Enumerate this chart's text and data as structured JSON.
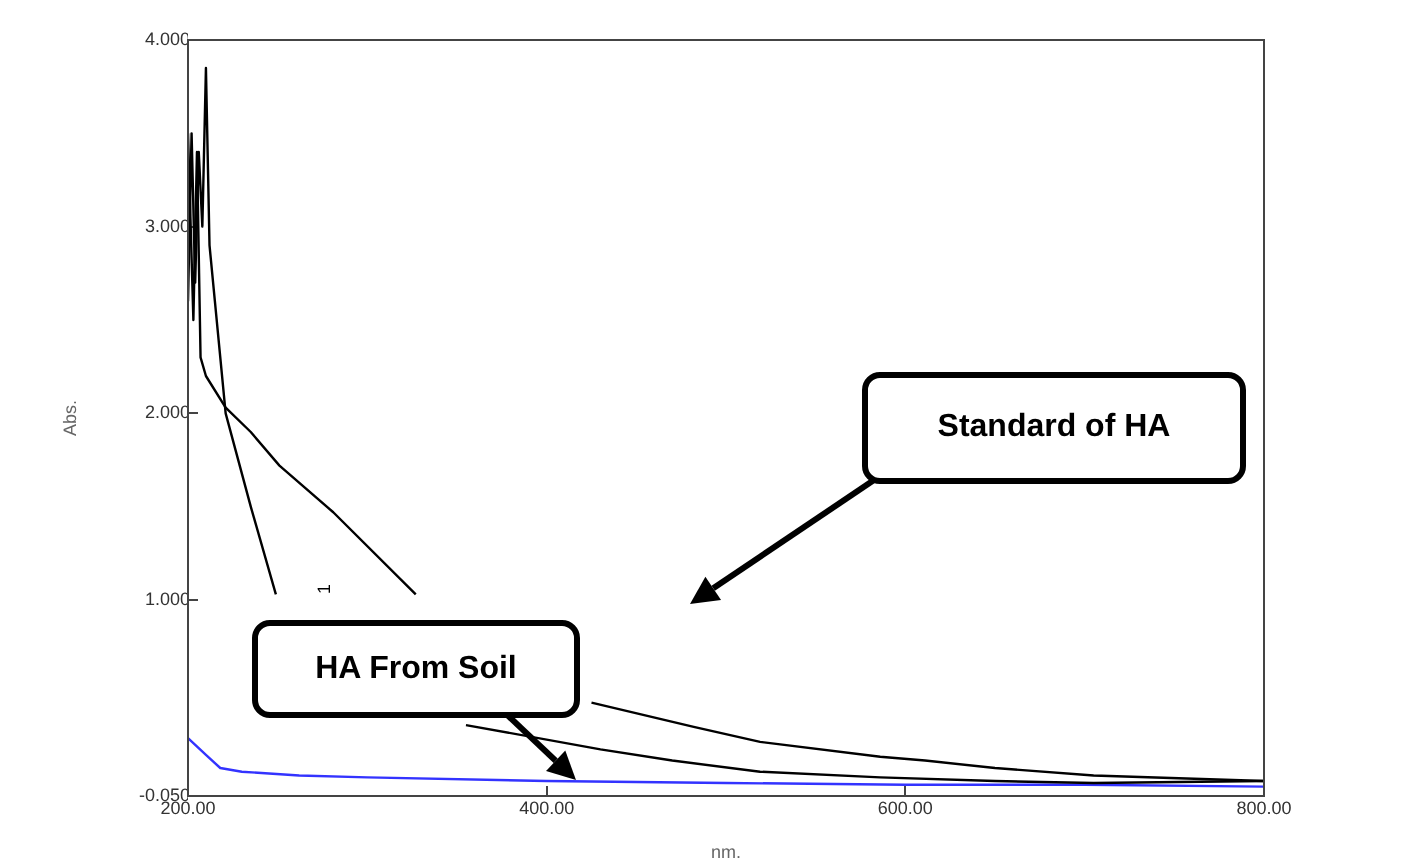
{
  "chart_data": {
    "type": "line",
    "xlabel": "nm.",
    "ylabel": "Abs.",
    "xlim": [
      200,
      800
    ],
    "xticks": [
      {
        "value": 200,
        "label": "200.00"
      },
      {
        "value": 400,
        "label": "400.00"
      },
      {
        "value": 600,
        "label": "600.00"
      },
      {
        "value": 800,
        "label": "800.00"
      }
    ],
    "ylim": [
      -0.05,
      4
    ],
    "yticks": [
      {
        "value": -0.05,
        "label": "-0.050"
      },
      {
        "value": 1,
        "label": "1.000"
      },
      {
        "value": 2,
        "label": "2.000"
      },
      {
        "value": 3,
        "label": "3.000"
      },
      {
        "value": 4,
        "label": "4.000"
      }
    ],
    "grid": false,
    "legend": false,
    "marker": "none",
    "line_style": "solid",
    "annotations": [
      "Standard of HA",
      "HA From Soil",
      "1"
    ],
    "series": [
      {
        "color": "#000000",
        "x": [
          200,
          202,
          204,
          206,
          208,
          210,
          212,
          215,
          221,
          235,
          249,
          280,
          320,
          355,
          430,
          470,
          519,
          586,
          650,
          705,
          800
        ],
        "values": [
          2.6,
          3.5,
          2.7,
          3.4,
          3.0,
          3.85,
          2.9,
          2.6,
          2.0,
          1.5,
          1.03,
          null,
          null,
          0.33,
          0.2,
          0.14,
          0.08,
          0.05,
          0.03,
          0.02,
          0.03
        ]
      },
      {
        "color": "#000000",
        "x": [
          200,
          203,
          205,
          207,
          210,
          221,
          235,
          251,
          281,
          327,
          360,
          425,
          482,
          519,
          586,
          611,
          650,
          705,
          800
        ],
        "values": [
          3.5,
          2.5,
          3.4,
          2.3,
          2.2,
          2.03,
          1.9,
          1.72,
          1.47,
          1.03,
          null,
          0.45,
          0.32,
          0.24,
          0.16,
          0.14,
          0.1,
          0.06,
          0.03
        ]
      },
      {
        "color": "#3333ff",
        "x": [
          200,
          210,
          218,
          230,
          262,
          300,
          400,
          500,
          600,
          700,
          800
        ],
        "values": [
          0.26,
          0.17,
          0.1,
          0.08,
          0.06,
          0.05,
          0.03,
          0.02,
          0.01,
          0.01,
          0.0
        ]
      }
    ]
  }
}
